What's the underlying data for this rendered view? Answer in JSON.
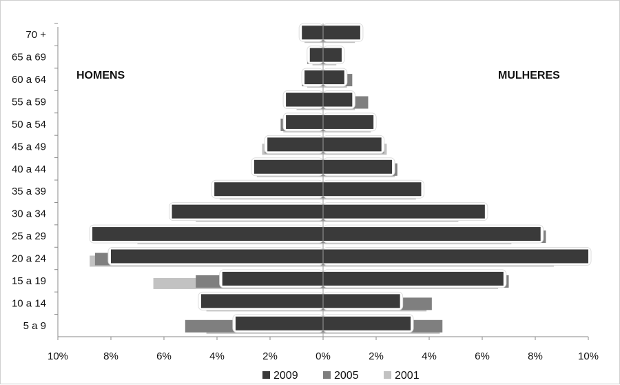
{
  "chart_data": {
    "type": "bar",
    "orientation": "horizontal-population-pyramid",
    "categories": [
      "5 a 9",
      "10 a 14",
      "15 a 19",
      "20 a 24",
      "25 a 29",
      "30 a 34",
      "35 a 39",
      "40 a 44",
      "45 a 49",
      "50 a 54",
      "55 a 59",
      "60 a 64",
      "65 a 69",
      "70 +"
    ],
    "left_label": "HOMENS",
    "right_label": "MULHERES",
    "xlim": [
      -10,
      10
    ],
    "xticks": [
      "10%",
      "8%",
      "6%",
      "4%",
      "2%",
      "0%",
      "2%",
      "4%",
      "6%",
      "8%",
      "10%"
    ],
    "series": [
      {
        "name": "2009",
        "color": "#3a3a3a",
        "men": [
          3.3,
          4.6,
          3.8,
          8.0,
          8.7,
          5.7,
          4.1,
          2.6,
          2.1,
          1.4,
          1.4,
          0.7,
          0.5,
          0.8
        ],
        "women": [
          3.3,
          2.9,
          6.8,
          10.0,
          8.2,
          6.1,
          3.7,
          2.6,
          2.2,
          1.9,
          1.1,
          0.8,
          0.7,
          1.4
        ]
      },
      {
        "name": "2005",
        "color": "#7f7f7f",
        "men": [
          5.2,
          4.3,
          4.8,
          8.6,
          6.9,
          5.2,
          3.8,
          2.6,
          2.2,
          1.6,
          1.2,
          0.8,
          0.6,
          0.8
        ],
        "women": [
          4.5,
          4.1,
          7.0,
          8.8,
          8.4,
          5.2,
          3.6,
          2.8,
          2.3,
          1.7,
          1.7,
          1.1,
          0.6,
          1.3
        ]
      },
      {
        "name": "2001",
        "color": "#c2c2c2",
        "men": [
          4.4,
          4.4,
          6.4,
          8.8,
          7.0,
          4.8,
          3.9,
          2.5,
          2.3,
          1.5,
          1.0,
          0.6,
          0.4,
          0.7
        ],
        "women": [
          4.4,
          3.9,
          6.6,
          8.7,
          7.1,
          5.1,
          3.5,
          2.7,
          2.4,
          1.8,
          1.2,
          0.9,
          0.5,
          1.2
        ]
      }
    ],
    "legend_position": "bottom-center",
    "grid": false
  }
}
